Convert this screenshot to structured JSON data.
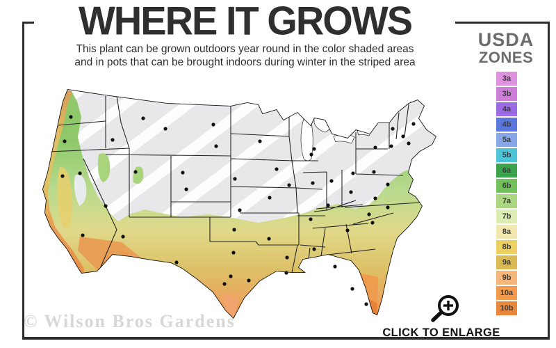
{
  "header": {
    "title": "WHERE IT GROWS",
    "subtitle_line1": "This plant can be grown outdoors year round in the color shaded areas",
    "subtitle_line2": "and in pots that can be brought indoors during winter in the striped area"
  },
  "legend": {
    "title_line1": "USDA",
    "title_line2": "ZONES",
    "zones": [
      {
        "label": "3a",
        "color": "#de92de"
      },
      {
        "label": "3b",
        "color": "#cc7ed6"
      },
      {
        "label": "4a",
        "color": "#9b6be4"
      },
      {
        "label": "4b",
        "color": "#5a77dd"
      },
      {
        "label": "5a",
        "color": "#88a7e8"
      },
      {
        "label": "5b",
        "color": "#4ec4d9"
      },
      {
        "label": "6a",
        "color": "#3aa24a"
      },
      {
        "label": "6b",
        "color": "#72c15d"
      },
      {
        "label": "7a",
        "color": "#abd781"
      },
      {
        "label": "7b",
        "color": "#dcedb4"
      },
      {
        "label": "8a",
        "color": "#f2e8af"
      },
      {
        "label": "8b",
        "color": "#ecd162"
      },
      {
        "label": "9a",
        "color": "#d9ba55"
      },
      {
        "label": "9b",
        "color": "#f6b67b"
      },
      {
        "label": "10a",
        "color": "#f29b4e"
      },
      {
        "label": "10b",
        "color": "#e8873c"
      }
    ]
  },
  "map": {
    "description": "USDA hardiness zone map of the contiguous United States",
    "colors": {
      "striped_region_fill": "#e8e8eb",
      "stripe": "#ffffff",
      "outline": "#1a1a1a",
      "zone_green": "#8ec86a",
      "zone_yellow": "#e2d687",
      "zone_orange": "#e88c42"
    },
    "city_dots": [
      [
        102,
        168
      ],
      [
        93,
        203
      ],
      [
        162,
        201
      ],
      [
        206,
        170
      ],
      [
        238,
        185
      ],
      [
        307,
        179
      ],
      [
        311,
        210
      ],
      [
        263,
        248
      ],
      [
        268,
        272
      ],
      [
        115,
        249
      ],
      [
        152,
        296
      ],
      [
        195,
        247
      ],
      [
        90,
        253
      ],
      [
        119,
        338
      ],
      [
        338,
        257
      ],
      [
        345,
        302
      ],
      [
        337,
        330
      ],
      [
        254,
        377
      ],
      [
        336,
        363
      ],
      [
        332,
        397
      ],
      [
        323,
        408
      ],
      [
        358,
        403
      ],
      [
        374,
        203
      ],
      [
        398,
        243
      ],
      [
        388,
        284
      ],
      [
        387,
        343
      ],
      [
        412,
        392
      ],
      [
        448,
        222
      ],
      [
        416,
        266
      ],
      [
        450,
        263
      ],
      [
        477,
        260
      ],
      [
        452,
        214
      ],
      [
        508,
        249
      ],
      [
        472,
        295
      ],
      [
        447,
        315
      ],
      [
        413,
        370
      ],
      [
        452,
        358
      ],
      [
        500,
        331
      ],
      [
        482,
        383
      ],
      [
        507,
        415
      ],
      [
        527,
        437
      ],
      [
        536,
        320
      ],
      [
        531,
        308
      ],
      [
        558,
        298
      ],
      [
        540,
        285
      ],
      [
        505,
        276
      ],
      [
        538,
        247
      ],
      [
        563,
        210
      ],
      [
        540,
        212
      ],
      [
        558,
        265
      ],
      [
        565,
        185
      ],
      [
        580,
        196
      ],
      [
        595,
        178
      ],
      [
        588,
        206
      ],
      [
        177,
        340
      ]
    ]
  },
  "watermark": "© Wilson Bros Gardens",
  "enlarge": {
    "label": "CLICK TO ENLARGE"
  },
  "frame_color": "#2d2d2d"
}
